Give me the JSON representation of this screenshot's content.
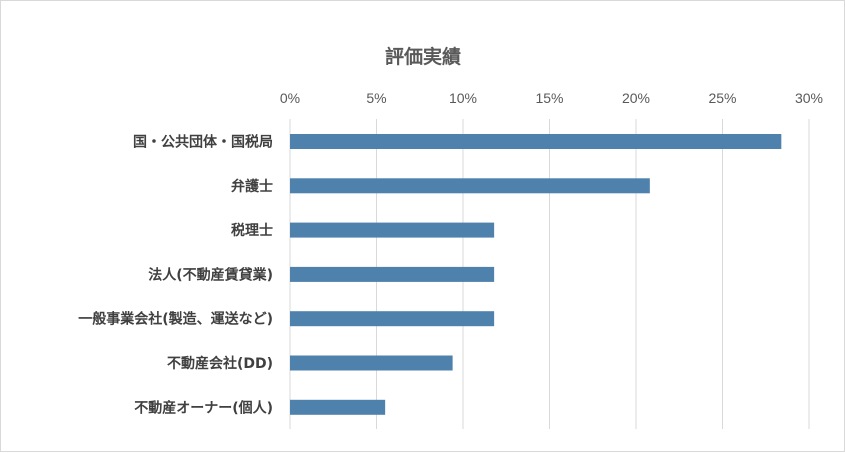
{
  "chart_data": {
    "type": "bar",
    "orientation": "horizontal",
    "title": "評価実績",
    "categories": [
      "国・公共団体・国税局",
      "弁護士",
      "税理士",
      "法人(不動産賃貸業)",
      "一般事業会社(製造、運送など)",
      "不動産会社(DD)",
      "不動産オーナー(個人)"
    ],
    "values": [
      28.4,
      20.8,
      11.8,
      11.8,
      11.8,
      9.4,
      5.5
    ],
    "xlim": [
      0,
      30
    ],
    "x_ticks": [
      "0%",
      "5%",
      "10%",
      "15%",
      "20%",
      "25%",
      "30%"
    ],
    "x_axis_position": "top",
    "grid": true,
    "legend": "none",
    "bar_color": "#4f81ad",
    "grid_color": "#d9d9d9"
  }
}
